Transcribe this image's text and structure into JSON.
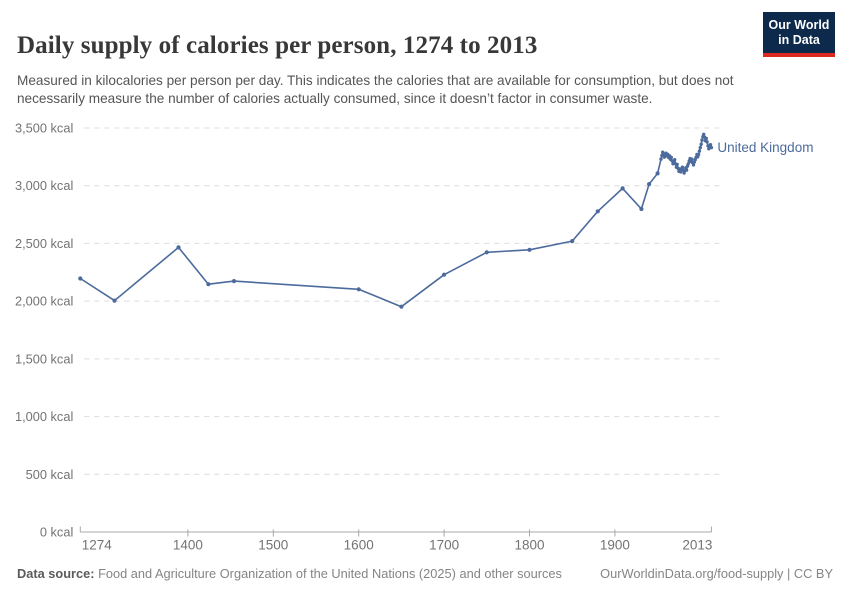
{
  "header": {
    "title": "Daily supply of calories per person, 1274 to 2013",
    "subtitle": "Measured in kilocalories per person per day. This indicates the calories that are available for consumption, but does not necessarily measure the number of calories actually consumed, since it doesn’t factor in consumer waste."
  },
  "logo": {
    "line1": "Our World",
    "line2": "in Data",
    "bg_color": "#0d2a4d",
    "bar_color": "#dc2a20",
    "text_color": "#ffffff"
  },
  "chart_data": {
    "type": "line",
    "title": "Daily supply of calories per person, 1274 to 2013",
    "xlabel": "",
    "ylabel": "",
    "unit": "kcal",
    "xlim": [
      1274,
      2013
    ],
    "ylim": [
      0,
      3500
    ],
    "grid": "horizontal-dashed",
    "legend_position": "end-of-line",
    "x_ticks": [
      {
        "v": 1274,
        "label": "1274"
      },
      {
        "v": 1400,
        "label": "1400"
      },
      {
        "v": 1500,
        "label": "1500"
      },
      {
        "v": 1600,
        "label": "1600"
      },
      {
        "v": 1700,
        "label": "1700"
      },
      {
        "v": 1800,
        "label": "1800"
      },
      {
        "v": 1900,
        "label": "1900"
      },
      {
        "v": 2013,
        "label": "2013"
      }
    ],
    "y_ticks": [
      {
        "v": 0,
        "label": "0 kcal"
      },
      {
        "v": 500,
        "label": "500 kcal"
      },
      {
        "v": 1000,
        "label": "1,000 kcal"
      },
      {
        "v": 1500,
        "label": "1,500 kcal"
      },
      {
        "v": 2000,
        "label": "2,000 kcal"
      },
      {
        "v": 2500,
        "label": "2,500 kcal"
      },
      {
        "v": 3000,
        "label": "3,000 kcal"
      },
      {
        "v": 3500,
        "label": "3,500 kcal"
      }
    ],
    "series": [
      {
        "name": "United Kingdom",
        "color": "#4C6B9C",
        "points": [
          [
            1274,
            2196
          ],
          [
            1314,
            2005
          ],
          [
            1389,
            2466
          ],
          [
            1424,
            2147
          ],
          [
            1454,
            2174
          ],
          [
            1600,
            2103
          ],
          [
            1650,
            1952
          ],
          [
            1700,
            2229
          ],
          [
            1750,
            2423
          ],
          [
            1800,
            2445
          ],
          [
            1850,
            2520
          ],
          [
            1880,
            2778
          ],
          [
            1909,
            2977
          ],
          [
            1931,
            2798
          ],
          [
            1940,
            3014
          ],
          [
            1950,
            3107
          ],
          [
            1954,
            3231
          ],
          [
            1955,
            3262
          ],
          [
            1956,
            3290
          ],
          [
            1957,
            3270
          ],
          [
            1958,
            3248
          ],
          [
            1959,
            3266
          ],
          [
            1960,
            3282
          ],
          [
            1961,
            3258
          ],
          [
            1962,
            3270
          ],
          [
            1963,
            3244
          ],
          [
            1964,
            3258
          ],
          [
            1965,
            3230
          ],
          [
            1966,
            3245
          ],
          [
            1967,
            3215
          ],
          [
            1968,
            3190
          ],
          [
            1969,
            3205
          ],
          [
            1970,
            3225
          ],
          [
            1971,
            3190
          ],
          [
            1972,
            3160
          ],
          [
            1973,
            3185
          ],
          [
            1974,
            3150
          ],
          [
            1975,
            3125
          ],
          [
            1976,
            3145
          ],
          [
            1977,
            3120
          ],
          [
            1978,
            3140
          ],
          [
            1979,
            3160
          ],
          [
            1980,
            3135
          ],
          [
            1981,
            3110
          ],
          [
            1982,
            3130
          ],
          [
            1983,
            3155
          ],
          [
            1984,
            3135
          ],
          [
            1985,
            3170
          ],
          [
            1986,
            3190
          ],
          [
            1987,
            3215
          ],
          [
            1988,
            3235
          ],
          [
            1989,
            3210
          ],
          [
            1990,
            3230
          ],
          [
            1991,
            3200
          ],
          [
            1992,
            3180
          ],
          [
            1993,
            3205
          ],
          [
            1994,
            3225
          ],
          [
            1995,
            3245
          ],
          [
            1996,
            3270
          ],
          [
            1997,
            3250
          ],
          [
            1998,
            3270
          ],
          [
            1999,
            3300
          ],
          [
            2000,
            3330
          ],
          [
            2001,
            3360
          ],
          [
            2002,
            3395
          ],
          [
            2003,
            3425
          ],
          [
            2004,
            3445
          ],
          [
            2005,
            3420
          ],
          [
            2006,
            3390
          ],
          [
            2007,
            3410
          ],
          [
            2008,
            3380
          ],
          [
            2009,
            3345
          ],
          [
            2010,
            3320
          ],
          [
            2011,
            3340
          ],
          [
            2012,
            3355
          ],
          [
            2013,
            3330
          ]
        ]
      }
    ],
    "colors": {
      "gridline": "#dcdcdc",
      "axis": "#a8a8a8",
      "tick_label": "#737373"
    }
  },
  "footer": {
    "source_label": "Data source:",
    "source_text": " Food and Agriculture Organization of the United Nations (2025) and other sources",
    "link": "OurWorldinData.org/food-supply | CC BY"
  }
}
